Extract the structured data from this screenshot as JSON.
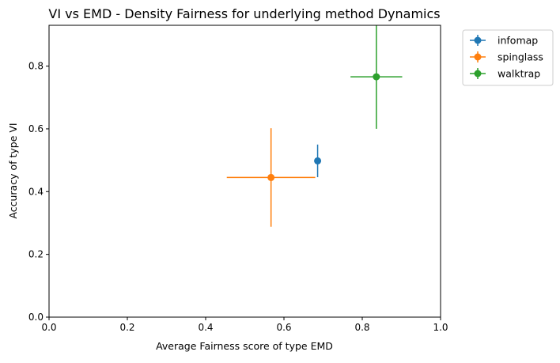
{
  "chart_data": {
    "type": "scatter",
    "title": "VI vs EMD - Density Fairness for underlying method Dynamics",
    "xlabel": "Average Fairness score of type EMD",
    "ylabel": "Accuracy of type VI",
    "xlim": [
      0.0,
      1.0
    ],
    "ylim": [
      0.0,
      0.93
    ],
    "xticks": [
      "0.0",
      "0.2",
      "0.4",
      "0.6",
      "0.8",
      "1.0"
    ],
    "yticks": [
      "0.0",
      "0.2",
      "0.4",
      "0.6",
      "0.8"
    ],
    "grid": false,
    "legend_position": "outside top-right",
    "series": [
      {
        "name": "infomap",
        "color": "#1f77b4",
        "x": 0.686,
        "y": 0.498,
        "xerr": 0.0,
        "yerr": 0.052
      },
      {
        "name": "spinglass",
        "color": "#ff7f0e",
        "x": 0.567,
        "y": 0.445,
        "xerr": 0.113,
        "yerr": 0.157
      },
      {
        "name": "walktrap",
        "color": "#2ca02c",
        "x": 0.836,
        "y": 0.766,
        "xerr": 0.066,
        "yerr": 0.166
      }
    ]
  }
}
